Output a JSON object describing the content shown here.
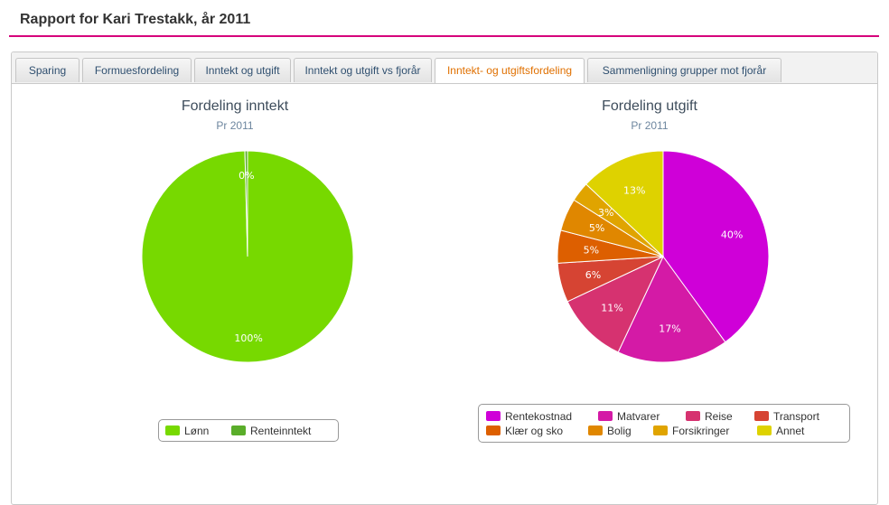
{
  "page": {
    "title": "Rapport for Kari Trestakk, år 2011"
  },
  "tabs": [
    {
      "label": "Sparing",
      "active": false
    },
    {
      "label": "Formuesfordeling",
      "active": false
    },
    {
      "label": "Inntekt og utgift",
      "active": false
    },
    {
      "label": "Inntekt og utgift vs fjorår",
      "active": false
    },
    {
      "label": "Inntekt- og utgiftsfordeling",
      "active": true
    },
    {
      "label": "Sammenligning grupper mot fjorår",
      "active": false
    }
  ],
  "colors": {
    "accent": "#d6007b",
    "active_tab": "#e07000"
  },
  "chart_data": [
    {
      "type": "pie",
      "title": "Fordeling inntekt",
      "subtitle": "Pr 2011",
      "slices": [
        {
          "name": "Lønn",
          "value": 99.6,
          "label": "100%",
          "color": "#77d900"
        },
        {
          "name": "Renteinntekt",
          "value": 0.4,
          "label": "0%",
          "color": "#5aad2a"
        }
      ],
      "legend_position": "bottom"
    },
    {
      "type": "pie",
      "title": "Fordeling utgift",
      "subtitle": "Pr 2011",
      "slices": [
        {
          "name": "Rentekostnad",
          "value": 40,
          "label": "40%",
          "color": "#cf00d8"
        },
        {
          "name": "Matvarer",
          "value": 17,
          "label": "17%",
          "color": "#d41aa6"
        },
        {
          "name": "Reise",
          "value": 11,
          "label": "11%",
          "color": "#d63270"
        },
        {
          "name": "Transport",
          "value": 6,
          "label": "6%",
          "color": "#d64433"
        },
        {
          "name": "Klær og sko",
          "value": 5,
          "label": "5%",
          "color": "#dd5f00"
        },
        {
          "name": "Bolig",
          "value": 5,
          "label": "5%",
          "color": "#e08700"
        },
        {
          "name": "Forsikringer",
          "value": 3,
          "label": "3%",
          "color": "#e0a400"
        },
        {
          "name": "Annet",
          "value": 13,
          "label": "13%",
          "color": "#ded200"
        }
      ],
      "legend_position": "bottom"
    }
  ]
}
